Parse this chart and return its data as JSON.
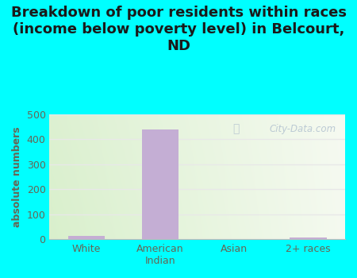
{
  "title": "Breakdown of poor residents within races\n(income below poverty level) in Belcourt,\nND",
  "categories": [
    "White",
    "American\nIndian",
    "Asian",
    "2+ races"
  ],
  "values": [
    15,
    440,
    0,
    7
  ],
  "bar_color": "#c4aed4",
  "ylabel": "absolute numbers",
  "ylim": [
    0,
    500
  ],
  "yticks": [
    0,
    100,
    200,
    300,
    400,
    500
  ],
  "bg_color": "#00ffff",
  "plot_bg_left": "#d8eecc",
  "plot_bg_right": "#f0f5e8",
  "title_fontsize": 13,
  "title_color": "#1a1a1a",
  "ylabel_color": "#666655",
  "tick_color": "#666655",
  "grid_color": "#e8e8e8",
  "watermark": "City-Data.com"
}
